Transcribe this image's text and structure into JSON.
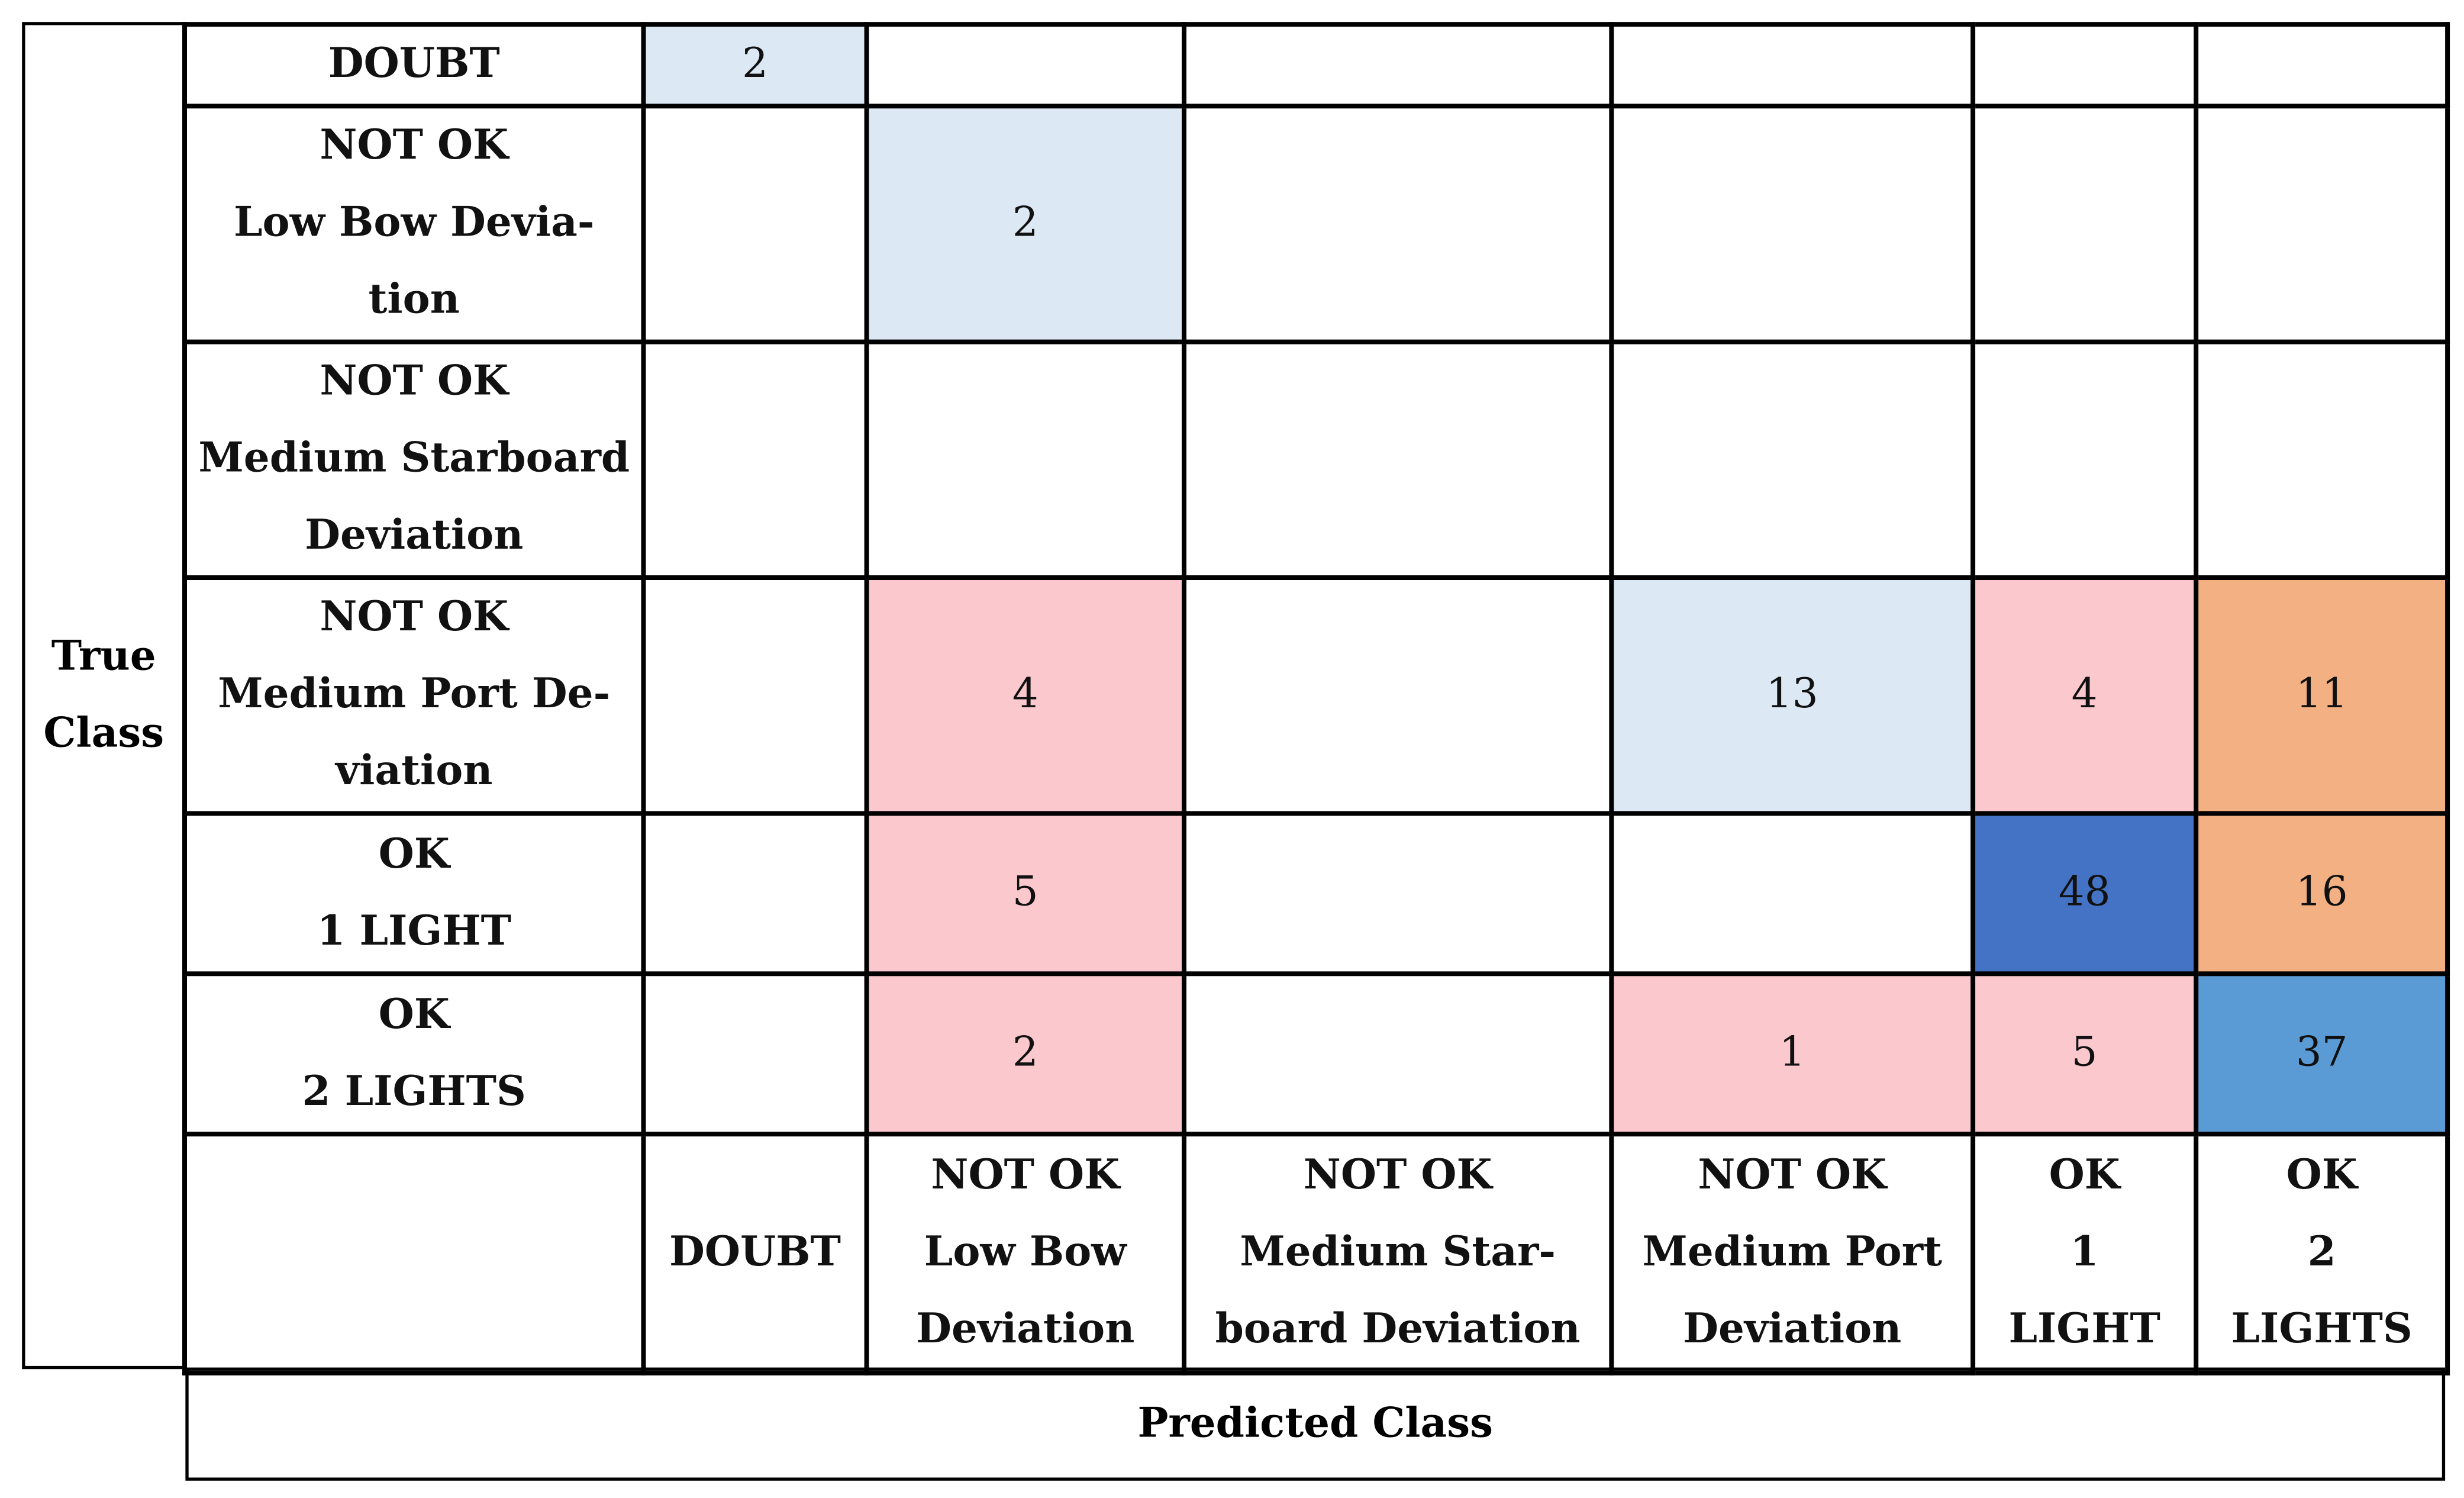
{
  "chart_data": {
    "type": "table",
    "row_axis_label": "True\nClass",
    "column_axis_label": "Predicted Class",
    "rows": [
      "DOUBT",
      "NOT OK\nLow Bow Devia-\ntion",
      "NOT OK\nMedium Starboard\nDeviation",
      "NOT OK\nMedium Port De-\nviation",
      "OK\n1 LIGHT",
      "OK\n2 LIGHTS"
    ],
    "columns": [
      "DOUBT",
      "NOT OK\nLow Bow\nDeviation",
      "NOT OK\nMedium Star-\nboard Deviation",
      "NOT OK\nMedium Port\nDeviation",
      "OK\n1\nLIGHT",
      "OK\n2\nLIGHTS"
    ],
    "values": [
      [
        2,
        null,
        null,
        null,
        null,
        null
      ],
      [
        null,
        2,
        null,
        null,
        null,
        null
      ],
      [
        null,
        null,
        null,
        null,
        null,
        null
      ],
      [
        null,
        4,
        null,
        13,
        4,
        11
      ],
      [
        null,
        5,
        null,
        null,
        48,
        16
      ],
      [
        null,
        2,
        null,
        1,
        5,
        37
      ]
    ],
    "cell_colors": [
      [
        "#dce9f5",
        null,
        null,
        null,
        null,
        null
      ],
      [
        null,
        "#dce9f5",
        null,
        null,
        null,
        null
      ],
      [
        null,
        null,
        null,
        null,
        null,
        null
      ],
      [
        null,
        "#fbc8ce",
        null,
        "#dce9f5",
        "#fbc8ce",
        "#f2b083"
      ],
      [
        null,
        "#fbc8ce",
        null,
        null,
        "#4472c4",
        "#f2b083"
      ],
      [
        null,
        "#fbc8ce",
        null,
        "#fbc8ce",
        "#fbc8ce",
        "#5b9bd5"
      ]
    ]
  }
}
